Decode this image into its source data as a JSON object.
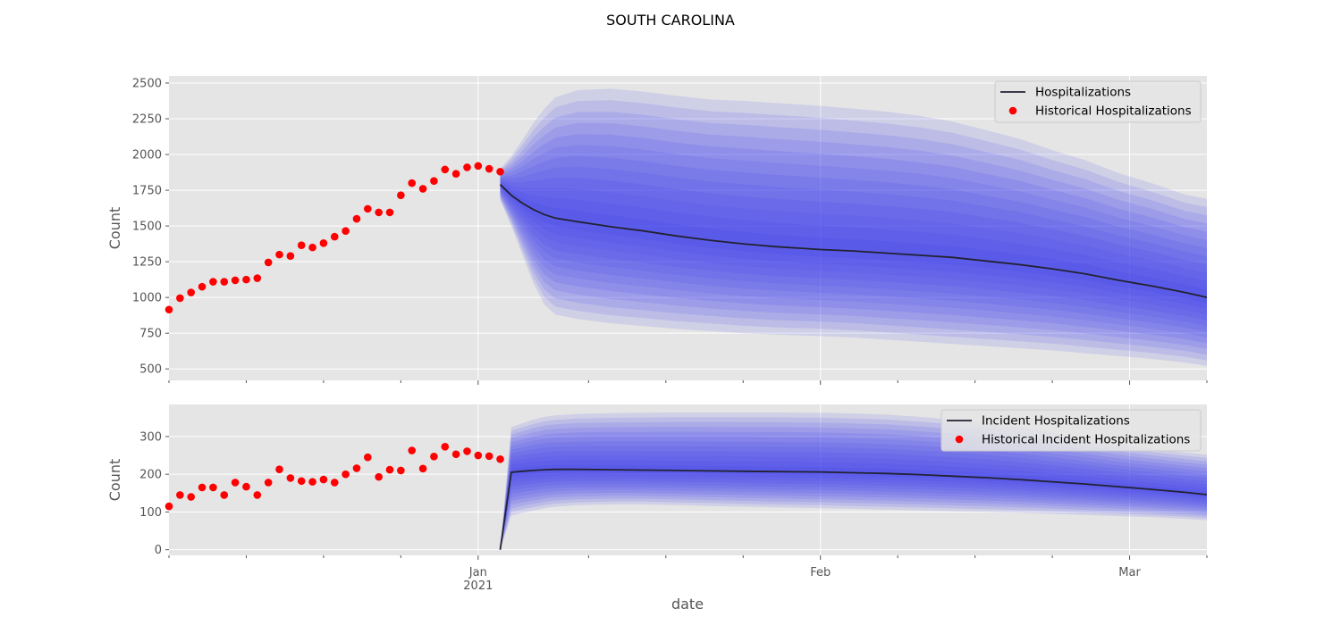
{
  "figure": {
    "title": "SOUTH CAROLINA",
    "xlabel": "date"
  },
  "colors": {
    "panel_bg": "#e5e5e5",
    "grid": "#ffffff",
    "band": "#3b3bf0",
    "median_line": "#222233",
    "historical": "#ff0000",
    "tick_text": "#555555"
  },
  "x_ticks": {
    "major": [
      {
        "date": "2021-01-01",
        "label": "Jan",
        "sublabel": "2021"
      },
      {
        "date": "2021-02-01",
        "label": "Feb",
        "sublabel": ""
      },
      {
        "date": "2021-03-01",
        "label": "Mar",
        "sublabel": ""
      }
    ],
    "minor_dates": [
      "2020-12-04",
      "2020-12-11",
      "2020-12-18",
      "2020-12-25",
      "2021-01-11",
      "2021-01-18",
      "2021-01-25",
      "2021-02-08",
      "2021-02-15",
      "2021-02-22",
      "2021-03-08"
    ]
  },
  "chart_data": [
    {
      "type": "line",
      "ylabel": "Count",
      "xlim": [
        "2020-12-04",
        "2021-03-08"
      ],
      "ylim": [
        420,
        2550
      ],
      "yticks": [
        500,
        750,
        1000,
        1250,
        1500,
        1750,
        2000,
        2250,
        2500
      ],
      "grid": true,
      "legend_position": "top-right",
      "legend": [
        {
          "label": "Hospitalizations",
          "kind": "line"
        },
        {
          "label": "Historical Hospitalizations",
          "kind": "marker"
        }
      ],
      "historical": {
        "name": "Historical Hospitalizations",
        "x": [
          "2020-12-04",
          "2020-12-05",
          "2020-12-06",
          "2020-12-07",
          "2020-12-08",
          "2020-12-09",
          "2020-12-10",
          "2020-12-11",
          "2020-12-12",
          "2020-12-13",
          "2020-12-14",
          "2020-12-15",
          "2020-12-16",
          "2020-12-17",
          "2020-12-18",
          "2020-12-19",
          "2020-12-20",
          "2020-12-21",
          "2020-12-22",
          "2020-12-23",
          "2020-12-24",
          "2020-12-25",
          "2020-12-26",
          "2020-12-27",
          "2020-12-28",
          "2020-12-29",
          "2020-12-30",
          "2020-12-31",
          "2021-01-01",
          "2021-01-02",
          "2021-01-03"
        ],
        "y": [
          915,
          995,
          1035,
          1075,
          1110,
          1110,
          1120,
          1125,
          1135,
          1245,
          1300,
          1290,
          1365,
          1350,
          1380,
          1425,
          1465,
          1550,
          1620,
          1595,
          1595,
          1715,
          1800,
          1760,
          1815,
          1895,
          1865,
          1910,
          1920,
          1900,
          1880
        ]
      },
      "forecast": {
        "name": "Hospitalizations",
        "x": [
          "2021-01-03",
          "2021-01-04",
          "2021-01-05",
          "2021-01-06",
          "2021-01-07",
          "2021-01-08",
          "2021-01-10",
          "2021-01-13",
          "2021-01-16",
          "2021-01-19",
          "2021-01-22",
          "2021-01-25",
          "2021-01-28",
          "2021-02-01",
          "2021-02-04",
          "2021-02-07",
          "2021-02-10",
          "2021-02-13",
          "2021-02-16",
          "2021-02-19",
          "2021-02-22",
          "2021-02-25",
          "2021-02-28",
          "2021-03-03",
          "2021-03-06",
          "2021-03-08"
        ],
        "median": [
          1790,
          1715,
          1660,
          1615,
          1580,
          1555,
          1530,
          1495,
          1465,
          1430,
          1400,
          1375,
          1355,
          1335,
          1325,
          1310,
          1295,
          1280,
          1255,
          1230,
          1200,
          1165,
          1120,
          1080,
          1035,
          1000
        ],
        "band_lower": [
          1680,
          1500,
          1300,
          1100,
          950,
          880,
          850,
          820,
          800,
          780,
          765,
          750,
          740,
          730,
          720,
          705,
          690,
          675,
          660,
          645,
          630,
          610,
          590,
          570,
          545,
          520
        ],
        "band_upper": [
          1900,
          1990,
          2100,
          2220,
          2320,
          2400,
          2450,
          2460,
          2440,
          2410,
          2385,
          2375,
          2360,
          2340,
          2320,
          2300,
          2270,
          2230,
          2170,
          2110,
          2030,
          1960,
          1870,
          1800,
          1720,
          1690
        ]
      }
    },
    {
      "type": "line",
      "ylabel": "Count",
      "xlim": [
        "2020-12-04",
        "2021-03-08"
      ],
      "ylim": [
        -15,
        385
      ],
      "yticks": [
        0,
        100,
        200,
        300
      ],
      "grid": true,
      "legend_position": "top-right",
      "legend": [
        {
          "label": "Incident Hospitalizations",
          "kind": "line"
        },
        {
          "label": "Historical Incident Hospitalizations",
          "kind": "marker"
        }
      ],
      "historical": {
        "name": "Historical Incident Hospitalizations",
        "x": [
          "2020-12-04",
          "2020-12-05",
          "2020-12-06",
          "2020-12-07",
          "2020-12-08",
          "2020-12-09",
          "2020-12-10",
          "2020-12-11",
          "2020-12-12",
          "2020-12-13",
          "2020-12-14",
          "2020-12-15",
          "2020-12-16",
          "2020-12-17",
          "2020-12-18",
          "2020-12-19",
          "2020-12-20",
          "2020-12-21",
          "2020-12-22",
          "2020-12-23",
          "2020-12-24",
          "2020-12-25",
          "2020-12-26",
          "2020-12-27",
          "2020-12-28",
          "2020-12-29",
          "2020-12-30",
          "2020-12-31",
          "2021-01-01",
          "2021-01-02",
          "2021-01-03"
        ],
        "y": [
          115,
          145,
          140,
          165,
          165,
          145,
          178,
          167,
          145,
          178,
          213,
          190,
          182,
          180,
          186,
          178,
          200,
          216,
          245,
          193,
          212,
          210,
          263,
          215,
          247,
          273,
          253,
          261,
          250,
          248,
          240
        ]
      },
      "forecast": {
        "name": "Incident Hospitalizations",
        "x": [
          "2021-01-03",
          "2021-01-04",
          "2021-01-05",
          "2021-01-06",
          "2021-01-07",
          "2021-01-08",
          "2021-01-10",
          "2021-01-13",
          "2021-01-16",
          "2021-01-19",
          "2021-01-22",
          "2021-01-25",
          "2021-01-28",
          "2021-02-01",
          "2021-02-04",
          "2021-02-07",
          "2021-02-10",
          "2021-02-13",
          "2021-02-16",
          "2021-02-19",
          "2021-02-22",
          "2021-02-25",
          "2021-02-28",
          "2021-03-03",
          "2021-03-06",
          "2021-03-08"
        ],
        "median": [
          0,
          205,
          208,
          210,
          212,
          213,
          213,
          212,
          211,
          210,
          209,
          208,
          207,
          206,
          204,
          202,
          199,
          195,
          191,
          186,
          180,
          174,
          167,
          160,
          152,
          146
        ],
        "band_lower": [
          0,
          90,
          98,
          104,
          110,
          114,
          118,
          120,
          120,
          118,
          116,
          114,
          112,
          110,
          108,
          106,
          104,
          102,
          100,
          98,
          95,
          92,
          89,
          86,
          82,
          78
        ],
        "band_upper": [
          0,
          325,
          335,
          345,
          352,
          356,
          360,
          362,
          363,
          364,
          364,
          364,
          364,
          363,
          361,
          358,
          352,
          345,
          336,
          325,
          310,
          295,
          280,
          268,
          258,
          252
        ]
      }
    }
  ]
}
